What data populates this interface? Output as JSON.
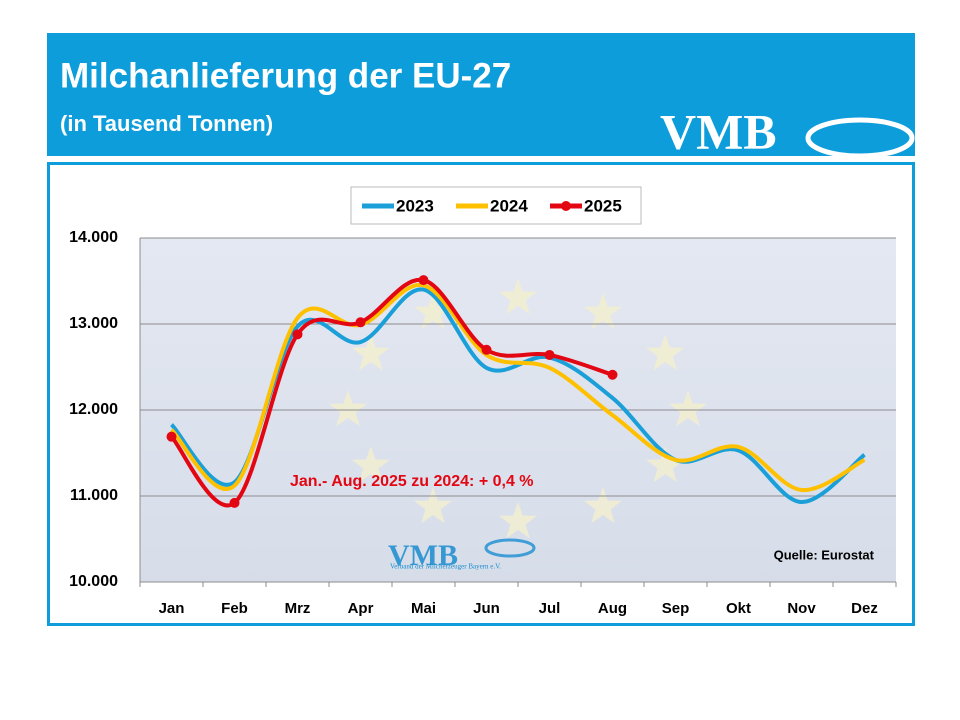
{
  "header": {
    "title": "Milchanlieferung der EU-27",
    "subtitle": "(in Tausend Tonnen)",
    "logo": "VMB"
  },
  "chart_data": {
    "type": "line",
    "categories": [
      "Jan",
      "Feb",
      "Mrz",
      "Apr",
      "Mai",
      "Jun",
      "Jul",
      "Aug",
      "Sep",
      "Okt",
      "Nov",
      "Dez"
    ],
    "series": [
      {
        "name": "2023",
        "color": "#1a9fd9",
        "values": [
          11830,
          11160,
          12970,
          12790,
          13400,
          12490,
          12610,
          12140,
          11420,
          11530,
          10930,
          11480
        ]
      },
      {
        "name": "2024",
        "color": "#ffc000",
        "values": [
          11770,
          11120,
          13070,
          12990,
          13450,
          12640,
          12490,
          11940,
          11420,
          11570,
          11070,
          11420
        ]
      },
      {
        "name": "2025",
        "color": "#e30613",
        "values": [
          11690,
          10920,
          12880,
          13020,
          13510,
          12700,
          12640,
          12410,
          null,
          null,
          null,
          null
        ],
        "markers": true
      }
    ],
    "ylim": [
      10000,
      14000
    ],
    "yticks": [
      {
        "value": 10000,
        "label": "10.000"
      },
      {
        "value": 11000,
        "label": "11.000"
      },
      {
        "value": 12000,
        "label": "12.000"
      },
      {
        "value": 13000,
        "label": "13.000"
      },
      {
        "value": 14000,
        "label": "14.000"
      }
    ],
    "grid": true,
    "legend": "top",
    "annotation": "Jan.- Aug. 2025 zu 2024: + 0,4 %",
    "source": "Quelle: Eurostat",
    "watermark": {
      "logo": "VMB",
      "text": "Verband der Milcherzeuger Bayern e.V."
    }
  }
}
